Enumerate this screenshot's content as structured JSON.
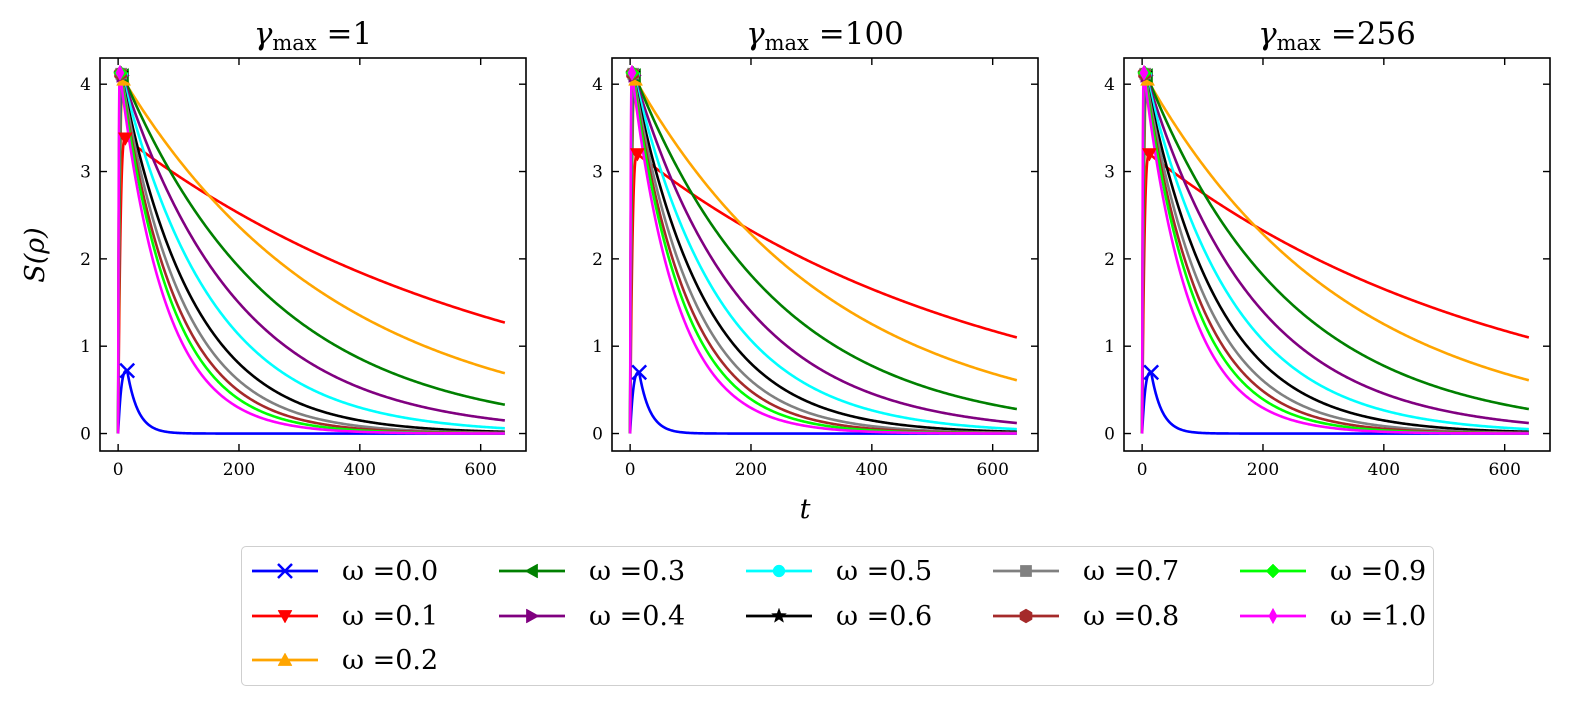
{
  "chart_data": {
    "type": "line",
    "xlabel": "t",
    "ylabel": "S(ρ)",
    "xlim": [
      -30,
      675
    ],
    "ylim": [
      -0.2,
      4.3
    ],
    "xticks": [
      0,
      200,
      400,
      600
    ],
    "yticks": [
      0,
      1,
      2,
      3,
      4
    ],
    "xtick_labels": [
      "0",
      "200",
      "400",
      "600"
    ],
    "ytick_labels": [
      "0",
      "1",
      "2",
      "3",
      "4"
    ],
    "t_max": 640,
    "legend_position": "bottom-center",
    "series": [
      {
        "name": "ω =0.0",
        "omega": "0.0",
        "color": "#0000ff",
        "marker": "x",
        "peak": [
          0.72,
          0.7,
          0.7
        ],
        "peak_t": 15,
        "final": [
          0.0,
          0.0,
          0.0
        ],
        "decay": 18
      },
      {
        "name": "ω =0.1",
        "omega": "0.1",
        "color": "#ff0000",
        "marker": "v",
        "peak": [
          3.38,
          3.2,
          3.2
        ],
        "peak_t": 12,
        "final": [
          1.27,
          1.1,
          1.1
        ]
      },
      {
        "name": "ω =0.2",
        "omega": "0.2",
        "color": "#ffa500",
        "marker": "^",
        "peak": [
          4.05,
          4.05,
          4.05
        ],
        "peak_t": 9,
        "final": [
          0.69,
          0.61,
          0.61
        ]
      },
      {
        "name": "ω =0.3",
        "omega": "0.3",
        "color": "#008000",
        "marker": "<",
        "peak": [
          4.1,
          4.1,
          4.1
        ],
        "peak_t": 8,
        "final": [
          0.33,
          0.28,
          0.28
        ]
      },
      {
        "name": "ω =0.4",
        "omega": "0.4",
        "color": "#800080",
        "marker": ">",
        "peak": [
          4.1,
          4.1,
          4.1
        ],
        "peak_t": 7,
        "final": [
          0.15,
          0.12,
          0.12
        ]
      },
      {
        "name": "ω =0.5",
        "omega": "0.5",
        "color": "#00ffff",
        "marker": "o",
        "peak": [
          4.12,
          4.12,
          4.12
        ],
        "peak_t": 6,
        "final": [
          0.06,
          0.05,
          0.05
        ]
      },
      {
        "name": "ω =0.6",
        "omega": "0.6",
        "color": "#000000",
        "marker": "*",
        "peak": [
          4.12,
          4.12,
          4.12
        ],
        "peak_t": 5,
        "final": [
          0.02,
          0.02,
          0.02
        ]
      },
      {
        "name": "ω =0.7",
        "omega": "0.7",
        "color": "#808080",
        "marker": "s",
        "peak": [
          4.12,
          4.12,
          4.12
        ],
        "peak_t": 5,
        "final": [
          0.008,
          0.008,
          0.008
        ]
      },
      {
        "name": "ω =0.8",
        "omega": "0.8",
        "color": "#a52a2a",
        "marker": "h",
        "peak": [
          4.12,
          4.12,
          4.12
        ],
        "peak_t": 4,
        "final": [
          0.004,
          0.004,
          0.004
        ]
      },
      {
        "name": "ω =0.9",
        "omega": "0.9",
        "color": "#00ff00",
        "marker": "D",
        "peak": [
          4.13,
          4.13,
          4.13
        ],
        "peak_t": 4,
        "final": [
          0.002,
          0.002,
          0.002
        ]
      },
      {
        "name": "ω =1.0",
        "omega": "1.0",
        "color": "#ff00ff",
        "marker": "d",
        "peak": [
          4.13,
          4.13,
          4.13
        ],
        "peak_t": 3,
        "final": [
          0.0008,
          0.0008,
          0.0008
        ]
      }
    ],
    "panels": [
      {
        "title_sym": "γ",
        "title_sub": "max",
        "title_val": " =1"
      },
      {
        "title_sym": "γ",
        "title_sub": "max",
        "title_val": " =100"
      },
      {
        "title_sym": "γ",
        "title_sub": "max",
        "title_val": " =256"
      }
    ]
  }
}
